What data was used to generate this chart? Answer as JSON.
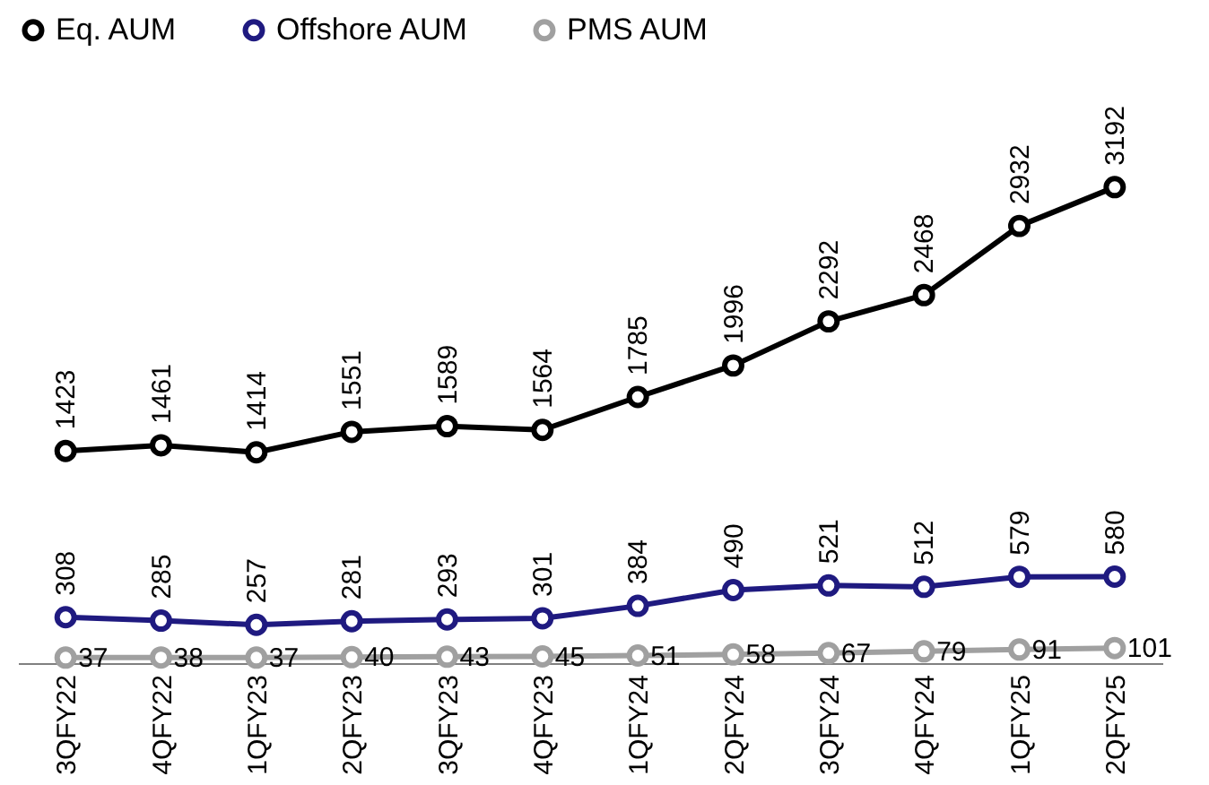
{
  "chart_data": {
    "type": "line",
    "categories": [
      "3QFY22",
      "4QFY22",
      "1QFY23",
      "2QFY23",
      "3QFY23",
      "4QFY23",
      "1QFY24",
      "2QFY24",
      "3QFY24",
      "4QFY24",
      "1QFY25",
      "2QFY25"
    ],
    "series": [
      {
        "name": "Eq. AUM",
        "color": "#000000",
        "values": [
          1423,
          1461,
          1414,
          1551,
          1589,
          1564,
          1785,
          1996,
          2292,
          2468,
          2932,
          3192
        ]
      },
      {
        "name": "Offshore AUM",
        "color": "#1f1a80",
        "values": [
          308,
          285,
          257,
          281,
          293,
          301,
          384,
          490,
          521,
          512,
          579,
          580
        ]
      },
      {
        "name": "PMS AUM",
        "color": "#a0a0a0",
        "values": [
          37,
          38,
          37,
          40,
          43,
          45,
          51,
          58,
          67,
          79,
          91,
          101
        ]
      }
    ],
    "data_labels": true,
    "legend": "top",
    "marker": "circle",
    "line_style": "solid"
  }
}
